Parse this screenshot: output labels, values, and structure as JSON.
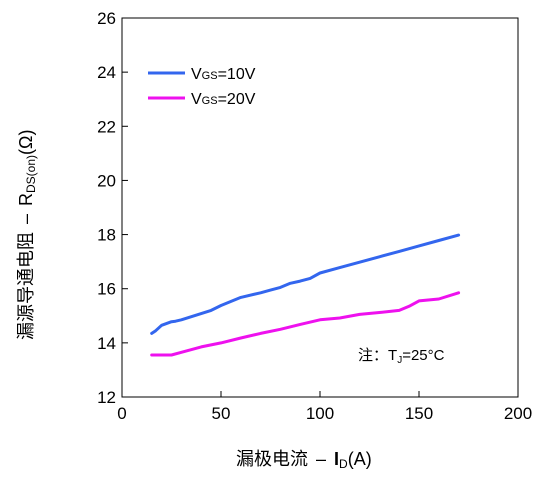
{
  "chart_data": {
    "type": "line",
    "title": "",
    "xlabel_cn": "漏极电流",
    "xlabel_sep": "–",
    "xlabel_sym_main": "I",
    "xlabel_sym_sub": "D",
    "xlabel_unit": "(A)",
    "ylabel_cn": "漏源导通电阻",
    "ylabel_sep": "–",
    "ylabel_sym_main": "R",
    "ylabel_sym_sub": "DS(on)",
    "ylabel_unit": "(Ω)",
    "xlim": [
      0,
      200
    ],
    "ylim": [
      12,
      26
    ],
    "x_ticks": [
      0,
      50,
      100,
      150,
      200
    ],
    "y_ticks": [
      12,
      14,
      16,
      18,
      20,
      22,
      24,
      26
    ],
    "grid": false,
    "legend_position": "top-left",
    "series": [
      {
        "name": "VGS=10V",
        "legend_v": "V",
        "legend_sub": "GS",
        "legend_val": "=10V",
        "color": "#3366ee",
        "x": [
          15,
          17,
          20,
          25,
          27,
          30,
          40,
          45,
          50,
          60,
          70,
          75,
          80,
          85,
          90,
          95,
          100,
          110,
          120,
          130,
          140,
          150,
          160,
          170
        ],
        "y": [
          14.35,
          14.45,
          14.65,
          14.78,
          14.8,
          14.85,
          15.08,
          15.2,
          15.38,
          15.68,
          15.85,
          15.95,
          16.05,
          16.2,
          16.28,
          16.38,
          16.58,
          16.78,
          16.98,
          17.18,
          17.38,
          17.58,
          17.78,
          17.98
        ]
      },
      {
        "name": "VGS=20V",
        "legend_v": "V",
        "legend_sub": "GS",
        "legend_val": "=20V",
        "color": "#ee11ee",
        "x": [
          15,
          20,
          25,
          30,
          40,
          50,
          60,
          70,
          80,
          90,
          100,
          110,
          120,
          130,
          140,
          145,
          150,
          160,
          170
        ],
        "y": [
          13.55,
          13.55,
          13.55,
          13.65,
          13.85,
          14.0,
          14.18,
          14.35,
          14.5,
          14.68,
          14.85,
          14.92,
          15.05,
          15.12,
          15.2,
          15.35,
          15.55,
          15.62,
          15.85
        ]
      }
    ],
    "annotation": {
      "prefix": "注：",
      "t": "T",
      "sub": "J",
      "val": "=25°C"
    }
  }
}
